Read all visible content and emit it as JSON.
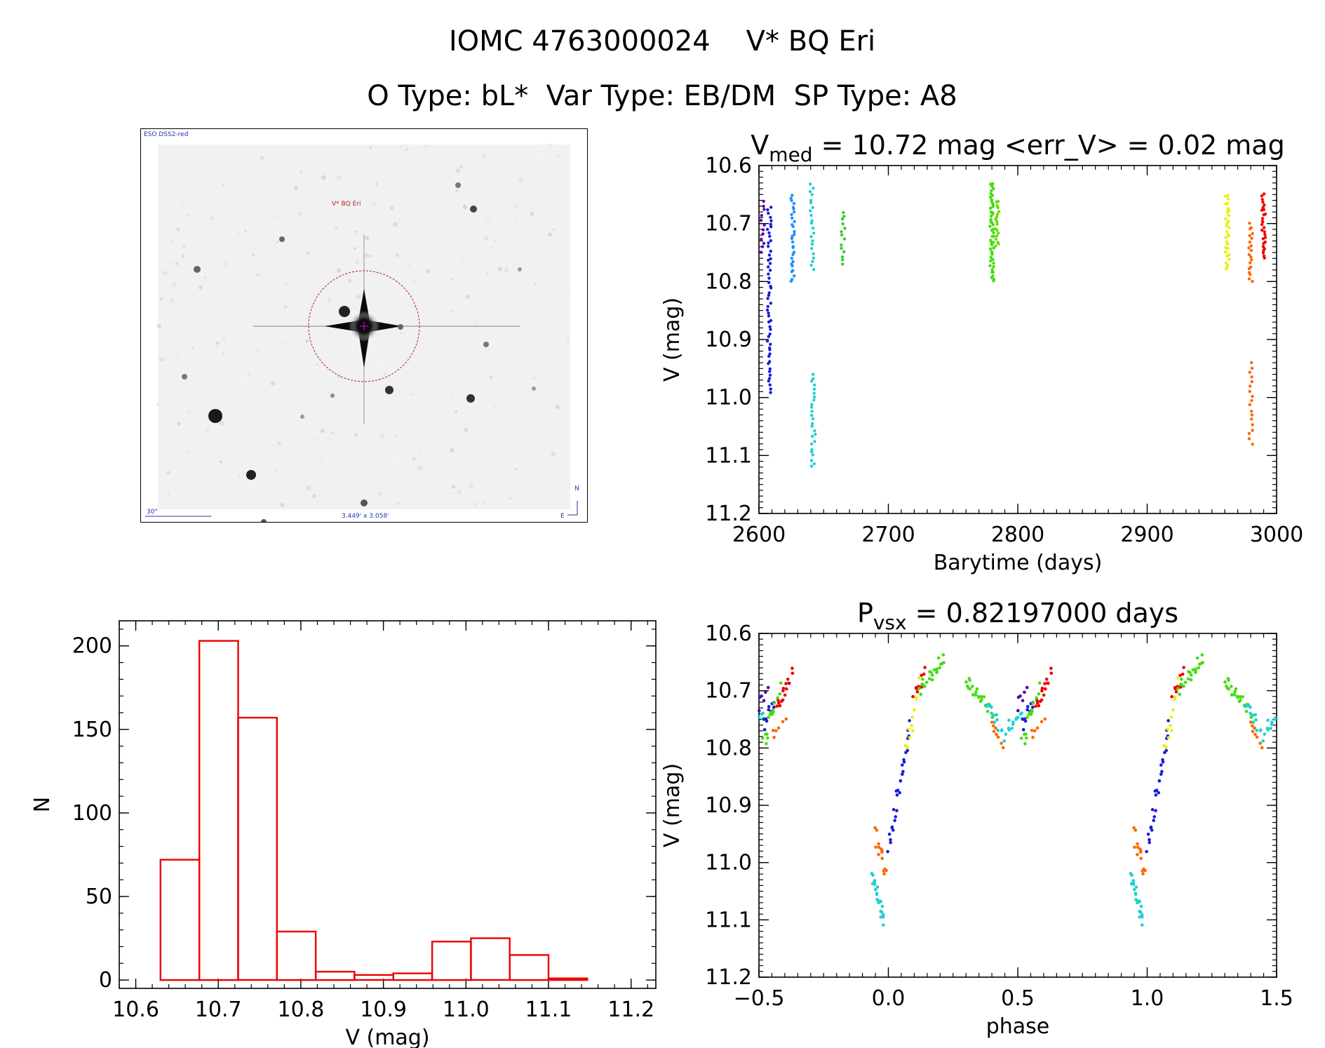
{
  "header": {
    "title": "IOMC 4763000024    V* BQ Eri",
    "subtitle": "O Type: bL*  Var Type: EB/DM  SP Type: A8"
  },
  "finder_chart": {
    "survey_label": "ESO DSS2-red",
    "target_label": "V* BQ Eri",
    "scale_label": "30\"",
    "fov_label": "3.449' x 3.058'",
    "north_label": "N",
    "east_label": "E",
    "circle_color": "#b22222"
  },
  "chart_data": [
    {
      "id": "light_curve",
      "type": "scatter",
      "title_main": "V",
      "title_sub": "med",
      "title_rest": " = 10.72 mag <err_V> = 0.02 mag",
      "xlabel": "Barytime (days)",
      "ylabel": "V (mag)",
      "xlim": [
        2600,
        3000
      ],
      "ylim": [
        11.2,
        10.6
      ],
      "y_inverted": true,
      "xticks": [
        2600,
        2700,
        2800,
        2900,
        3000
      ],
      "yticks": [
        10.6,
        10.7,
        10.8,
        10.9,
        11.0,
        11.1,
        11.2
      ],
      "ytick_labels": [
        "10.6",
        "10.7",
        "10.8",
        "10.9",
        "11.0",
        "11.1",
        "11.2"
      ],
      "groups": [
        {
          "x": 2603,
          "ymin": 10.66,
          "ymax": 10.75,
          "n": 12,
          "color": "#5500aa"
        },
        {
          "x": 2608,
          "ymin": 10.67,
          "ymax": 10.99,
          "n": 55,
          "color": "#1a1adc"
        },
        {
          "x": 2626,
          "ymin": 10.65,
          "ymax": 10.8,
          "n": 30,
          "color": "#1e90ff"
        },
        {
          "x": 2641,
          "ymin": 10.63,
          "ymax": 10.78,
          "n": 22,
          "color": "#20d0d0"
        },
        {
          "x": 2642,
          "ymin": 10.96,
          "ymax": 11.12,
          "n": 26,
          "color": "#20d0d0"
        },
        {
          "x": 2665,
          "ymin": 10.68,
          "ymax": 10.77,
          "n": 14,
          "color": "#33cc33"
        },
        {
          "x": 2780,
          "ymin": 10.63,
          "ymax": 10.8,
          "n": 50,
          "color": "#44dd11"
        },
        {
          "x": 2784,
          "ymin": 10.66,
          "ymax": 10.74,
          "n": 18,
          "color": "#66dd00"
        },
        {
          "x": 2962,
          "ymin": 10.65,
          "ymax": 10.78,
          "n": 30,
          "color": "#eeee00"
        },
        {
          "x": 2980,
          "ymin": 10.7,
          "ymax": 10.8,
          "n": 20,
          "color": "#ff6600"
        },
        {
          "x": 2980,
          "ymin": 10.94,
          "ymax": 11.08,
          "n": 18,
          "color": "#ff6600"
        },
        {
          "x": 2990,
          "ymin": 10.65,
          "ymax": 10.76,
          "n": 28,
          "color": "#ee0000"
        }
      ]
    },
    {
      "id": "histogram",
      "type": "bar",
      "xlabel": "V (mag)",
      "ylabel": "N",
      "xlim": [
        10.58,
        11.23
      ],
      "ylim": [
        -5,
        215
      ],
      "xticks": [
        10.6,
        10.7,
        10.8,
        10.9,
        11.0,
        11.1,
        11.2
      ],
      "xtick_labels": [
        "10.6",
        "10.7",
        "10.8",
        "10.9",
        "11.0",
        "11.1",
        "11.2"
      ],
      "yticks": [
        0,
        50,
        100,
        150,
        200
      ],
      "bin_edges": [
        10.63,
        10.677,
        10.724,
        10.771,
        10.818,
        10.865,
        10.912,
        10.959,
        11.006,
        11.053,
        11.1,
        11.147
      ],
      "counts": [
        72,
        203,
        157,
        29,
        5,
        3,
        4,
        23,
        25,
        15,
        1
      ],
      "color": "#ee0000"
    },
    {
      "id": "phased_curve",
      "type": "scatter",
      "title_main": "P",
      "title_sub": "vsx",
      "title_rest": " = 0.82197000 days",
      "xlabel": "phase",
      "ylabel": "V (mag)",
      "xlim": [
        -0.5,
        1.5
      ],
      "ylim": [
        11.2,
        10.6
      ],
      "y_inverted": true,
      "xticks": [
        -0.5,
        0.0,
        0.5,
        1.0,
        1.5
      ],
      "xtick_labels": [
        "−0.5",
        "0.0",
        "0.5",
        "1.0",
        "1.5"
      ],
      "yticks": [
        10.6,
        10.7,
        10.8,
        10.9,
        11.0,
        11.1,
        11.2
      ],
      "ytick_labels": [
        "10.6",
        "10.7",
        "10.8",
        "10.9",
        "11.0",
        "11.1",
        "11.2"
      ],
      "segments": [
        {
          "x0": -0.06,
          "x1": -0.02,
          "y0": 11.02,
          "y1": 11.1,
          "n": 22,
          "color": "#20d0d0"
        },
        {
          "x0": -0.05,
          "x1": -0.01,
          "y0": 10.95,
          "y1": 11.02,
          "n": 14,
          "color": "#ff6600"
        },
        {
          "x0": 0.0,
          "x1": 0.08,
          "y0": 10.98,
          "y1": 10.76,
          "n": 28,
          "color": "#1a1adc"
        },
        {
          "x0": 0.07,
          "x1": 0.12,
          "y0": 10.8,
          "y1": 10.69,
          "n": 12,
          "color": "#eeee00"
        },
        {
          "x0": 0.1,
          "x1": 0.14,
          "y0": 10.71,
          "y1": 10.67,
          "n": 10,
          "color": "#ee0000"
        },
        {
          "x0": 0.12,
          "x1": 0.22,
          "y0": 10.7,
          "y1": 10.64,
          "n": 22,
          "color": "#44dd11"
        },
        {
          "x0": 0.3,
          "x1": 0.4,
          "y0": 10.68,
          "y1": 10.74,
          "n": 26,
          "color": "#44dd11"
        },
        {
          "x0": 0.38,
          "x1": 0.45,
          "y0": 10.72,
          "y1": 10.78,
          "n": 14,
          "color": "#20d0d0"
        },
        {
          "x0": 0.4,
          "x1": 0.44,
          "y0": 10.76,
          "y1": 10.8,
          "n": 8,
          "color": "#ff6600"
        },
        {
          "x0": 0.46,
          "x1": 0.52,
          "y0": 10.76,
          "y1": 10.74,
          "n": 12,
          "color": "#20d0d0"
        },
        {
          "x0": 0.52,
          "x1": 0.56,
          "y0": 10.76,
          "y1": 10.72,
          "n": 10,
          "color": "#1a1adc"
        },
        {
          "x0": 0.52,
          "x1": 0.58,
          "y0": 10.79,
          "y1": 10.69,
          "n": 16,
          "color": "#44dd11"
        },
        {
          "x0": 0.57,
          "x1": 0.63,
          "y0": 10.73,
          "y1": 10.67,
          "n": 16,
          "color": "#ee0000"
        },
        {
          "x0": 0.55,
          "x1": 0.6,
          "y0": 10.78,
          "y1": 10.76,
          "n": 6,
          "color": "#ff6600"
        },
        {
          "x0": 0.5,
          "x1": 0.53,
          "y0": 10.73,
          "y1": 10.69,
          "n": 6,
          "color": "#5500aa"
        }
      ]
    }
  ]
}
